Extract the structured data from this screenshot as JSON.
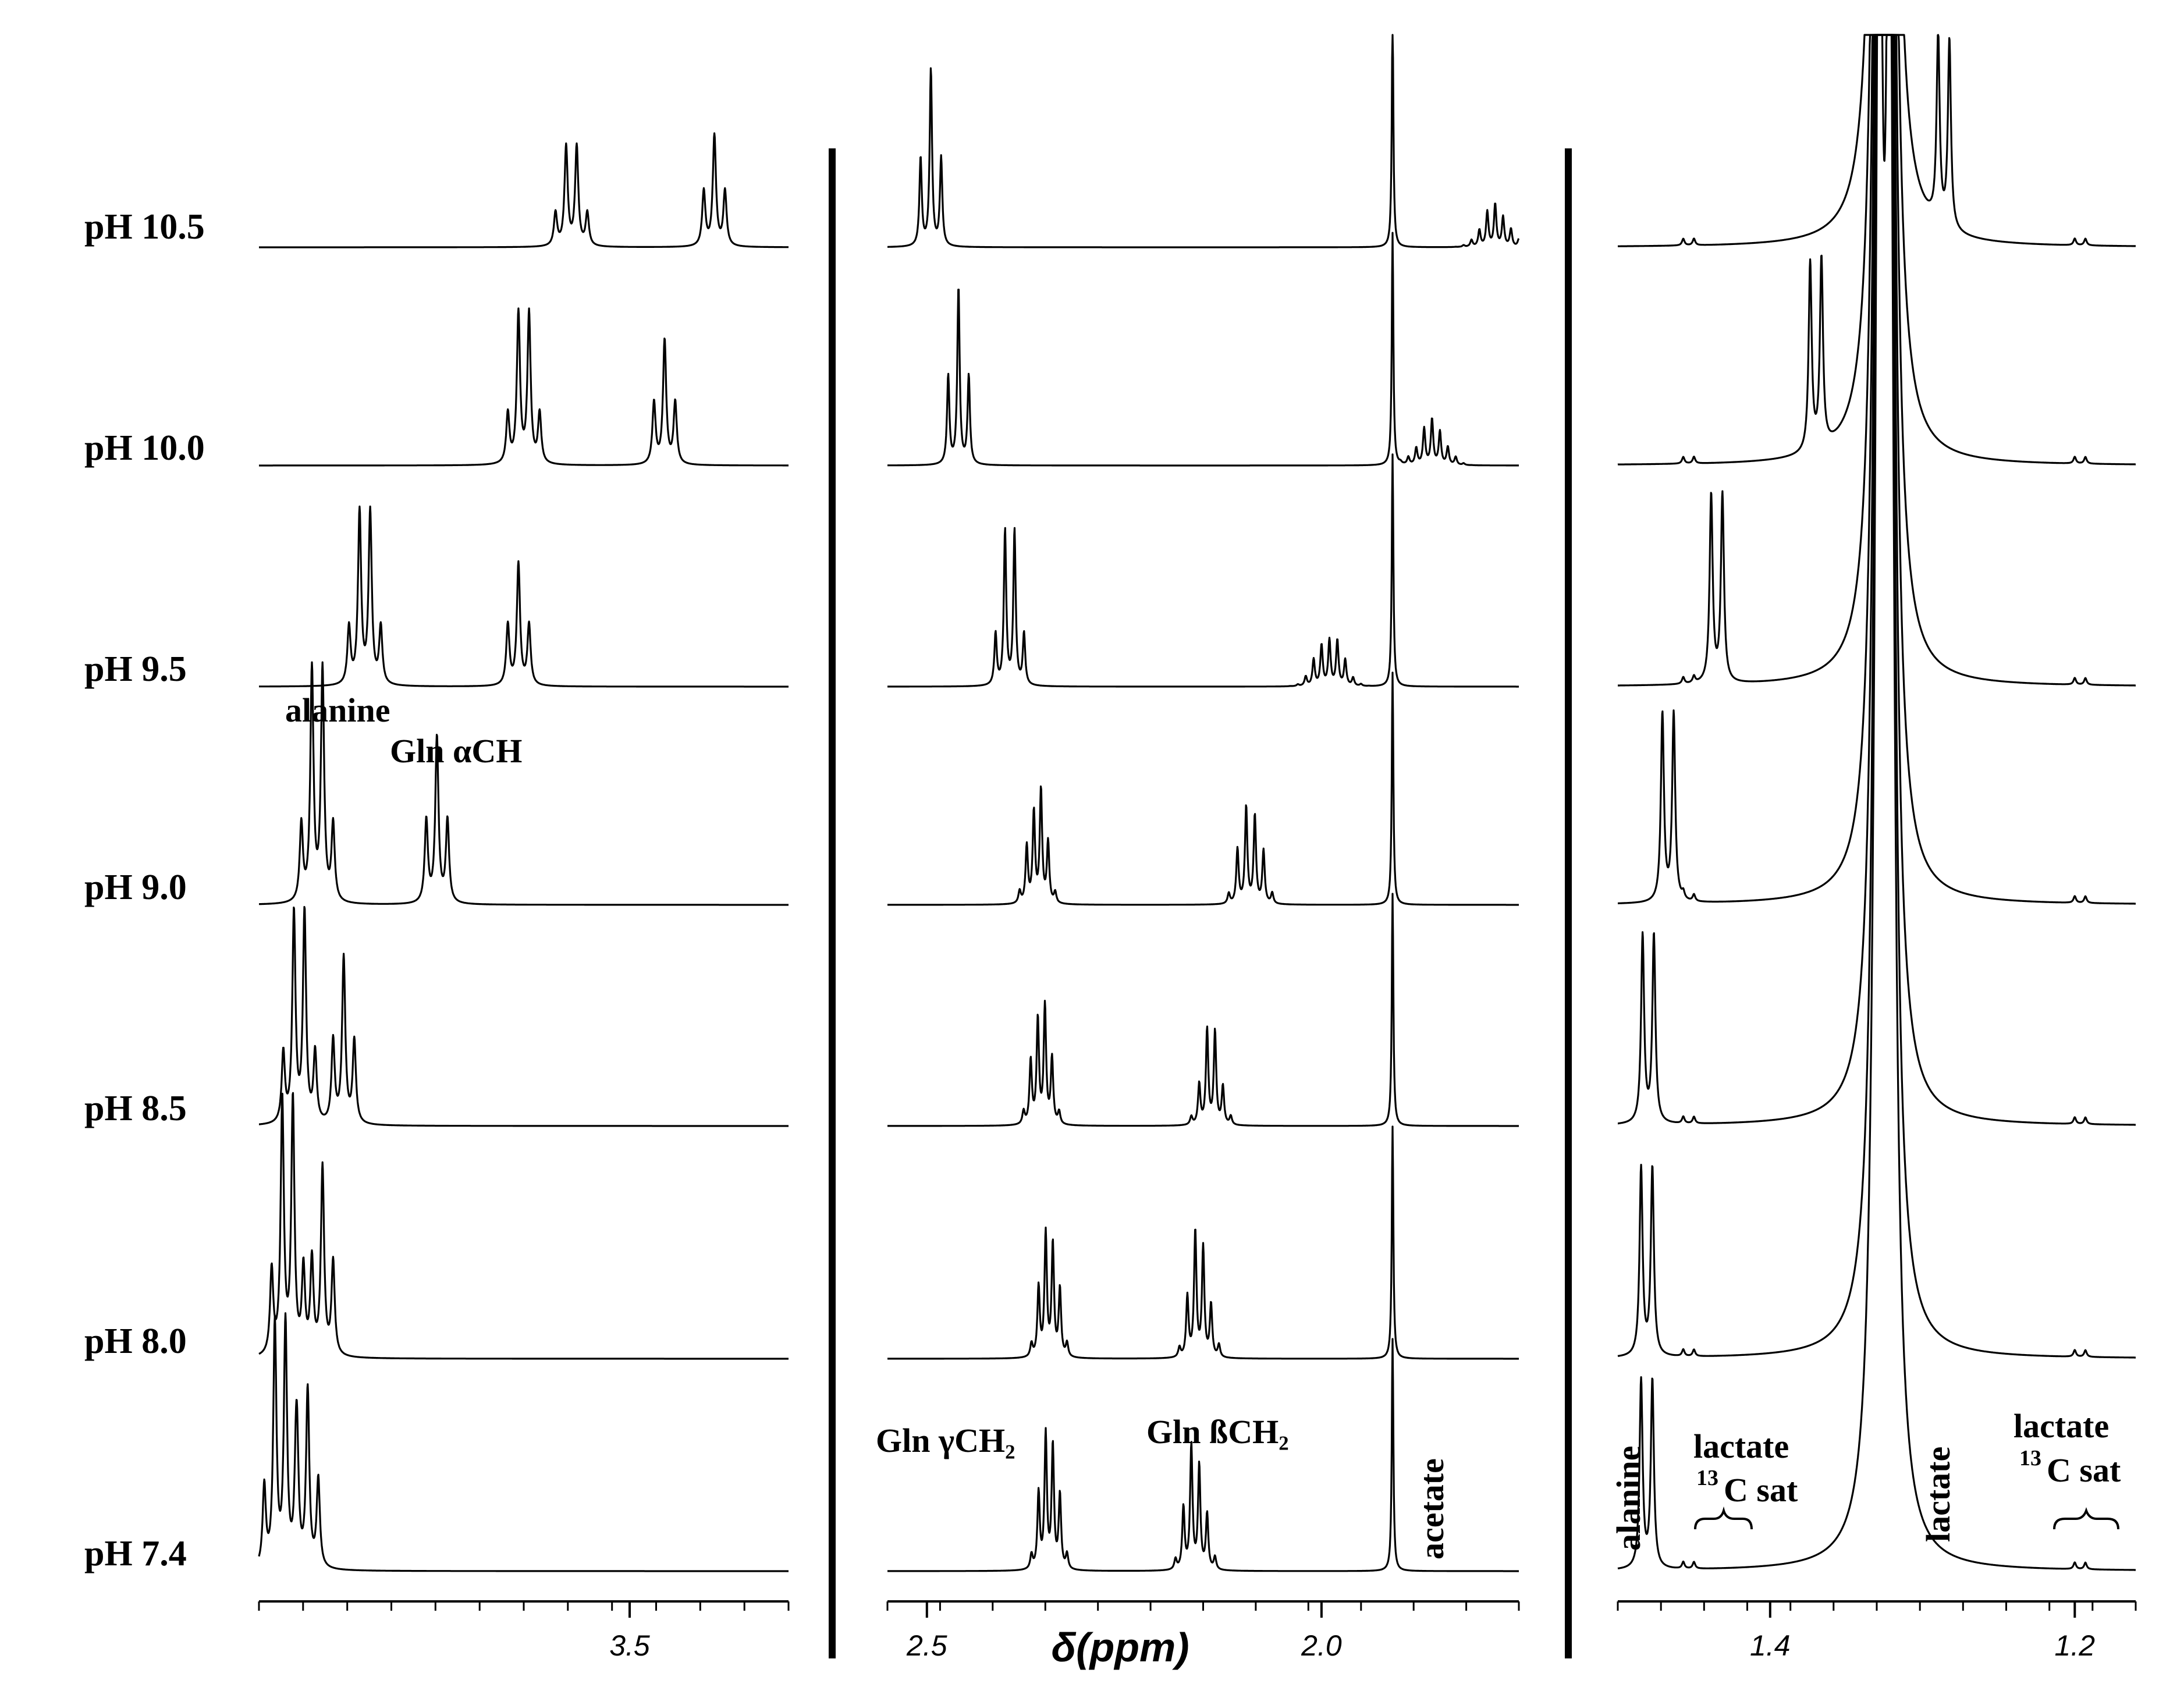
{
  "chart_data": {
    "type": "line",
    "title": "",
    "xlabel": "δ(ppm)",
    "ylabel": "",
    "spectra_labels": [
      "pH 10.5",
      "pH 10.0",
      "pH 9.5",
      "pH 9.0",
      "pH 8.5",
      "pH 8.0",
      "pH 7.4"
    ],
    "panels": [
      {
        "name": "alpha-region",
        "xlim": [
          3.85,
          3.35
        ],
        "ticks": [
          {
            "value": 3.5,
            "label": "3.5"
          }
        ],
        "series": [
          {
            "name": "pH 10.5",
            "peaks": [
              {
                "center": 3.555,
                "n": 4,
                "j": 0.01,
                "h": 0.45
              },
              {
                "center": 3.42,
                "n": 3,
                "j": 0.01,
                "h": 0.5
              }
            ]
          },
          {
            "name": "pH 10.0",
            "peaks": [
              {
                "center": 3.6,
                "n": 4,
                "j": 0.01,
                "h": 0.68
              },
              {
                "center": 3.467,
                "n": 3,
                "j": 0.01,
                "h": 0.56
              }
            ]
          },
          {
            "name": "pH 9.5",
            "peaks": [
              {
                "center": 3.75,
                "n": 4,
                "j": 0.01,
                "h": 0.78
              },
              {
                "center": 3.605,
                "n": 3,
                "j": 0.01,
                "h": 0.55
              }
            ]
          },
          {
            "name": "pH 9.0",
            "peaks": [
              {
                "center": 3.795,
                "n": 4,
                "j": 0.01,
                "h": 1.05
              },
              {
                "center": 3.682,
                "n": 3,
                "j": 0.01,
                "h": 0.75
              }
            ]
          },
          {
            "name": "pH 8.5",
            "peaks": [
              {
                "center": 3.812,
                "n": 4,
                "j": 0.01,
                "h": 0.95
              },
              {
                "center": 3.77,
                "n": 3,
                "j": 0.01,
                "h": 0.75
              }
            ]
          },
          {
            "name": "pH 8.0",
            "peaks": [
              {
                "center": 3.823,
                "n": 4,
                "j": 0.01,
                "h": 1.15
              },
              {
                "center": 3.79,
                "n": 3,
                "j": 0.01,
                "h": 0.85
              }
            ]
          },
          {
            "name": "pH 7.4",
            "peaks": [
              {
                "center": 3.83,
                "n": 4,
                "j": 0.01,
                "h": 1.1
              },
              {
                "center": 3.804,
                "n": 3,
                "j": 0.01,
                "h": 0.8
              }
            ]
          }
        ],
        "annotations": [
          "alanine",
          "Gln αCH"
        ]
      },
      {
        "name": "glutamine-region",
        "xlim": [
          2.55,
          1.75
        ],
        "ticks": [
          {
            "value": 2.5,
            "label": "2.5"
          },
          {
            "value": 2.0,
            "label": "2.0"
          }
        ],
        "acetate_ppm": 1.91,
        "series": [
          {
            "name": "pH 10.5",
            "peaks": [
              {
                "center": 2.495,
                "n": 3,
                "j": 0.013,
                "h": 0.8
              },
              {
                "center": 1.78,
                "n": 11,
                "j": 0.01,
                "h": 0.17
              }
            ]
          },
          {
            "name": "pH 10.0",
            "peaks": [
              {
                "center": 2.46,
                "n": 3,
                "j": 0.013,
                "h": 0.8
              },
              {
                "center": 1.86,
                "n": 11,
                "j": 0.01,
                "h": 0.18
              }
            ]
          },
          {
            "name": "pH 9.5",
            "peaks": [
              {
                "center": 2.395,
                "n": 4,
                "j": 0.012,
                "h": 0.7
              },
              {
                "center": 1.99,
                "n": 11,
                "j": 0.01,
                "h": 0.22
              }
            ]
          },
          {
            "name": "pH 9.0",
            "peaks": [
              {
                "center": 2.36,
                "n": 6,
                "j": 0.009,
                "h": 0.48
              },
              {
                "center": 2.09,
                "n": 6,
                "j": 0.011,
                "h": 0.43
              }
            ]
          },
          {
            "name": "pH 8.5",
            "peaks": [
              {
                "center": 2.355,
                "n": 6,
                "j": 0.009,
                "h": 0.52
              },
              {
                "center": 2.14,
                "n": 6,
                "j": 0.01,
                "h": 0.38
              }
            ]
          },
          {
            "name": "pH 8.0",
            "peaks": [
              {
                "center": 2.345,
                "n": 6,
                "j": 0.009,
                "h": 0.55
              },
              {
                "center": 2.155,
                "n": 6,
                "j": 0.01,
                "h": 0.5
              }
            ]
          },
          {
            "name": "pH 7.4",
            "peaks": [
              {
                "center": 2.345,
                "n": 6,
                "j": 0.009,
                "h": 0.6
              },
              {
                "center": 2.16,
                "n": 6,
                "j": 0.01,
                "h": 0.5
              }
            ]
          }
        ],
        "annotations": [
          "Gln γCH₂",
          "Gln ßCH₂",
          "acetate"
        ]
      },
      {
        "name": "lactate-region",
        "xlim": [
          1.5,
          1.16
        ],
        "ticks": [
          {
            "value": 1.4,
            "label": "1.4"
          },
          {
            "value": 1.2,
            "label": "1.2"
          }
        ],
        "lactate_ppm": 1.325,
        "series": [
          {
            "name": "pH 10.5",
            "alanine_ppm": 1.286
          },
          {
            "name": "pH 10.0",
            "alanine_ppm": 1.37
          },
          {
            "name": "pH 9.5",
            "alanine_ppm": 1.435
          },
          {
            "name": "pH 9.0",
            "alanine_ppm": 1.467
          },
          {
            "name": "pH 8.5",
            "alanine_ppm": 1.48
          },
          {
            "name": "pH 8.0",
            "alanine_ppm": 1.481
          },
          {
            "name": "pH 7.4",
            "alanine_ppm": 1.481
          }
        ],
        "annotations": [
          "alanine",
          "lactate",
          "lactate",
          "lactate"
        ],
        "c13_label": "13",
        "c13_text": "C sat"
      }
    ]
  }
}
